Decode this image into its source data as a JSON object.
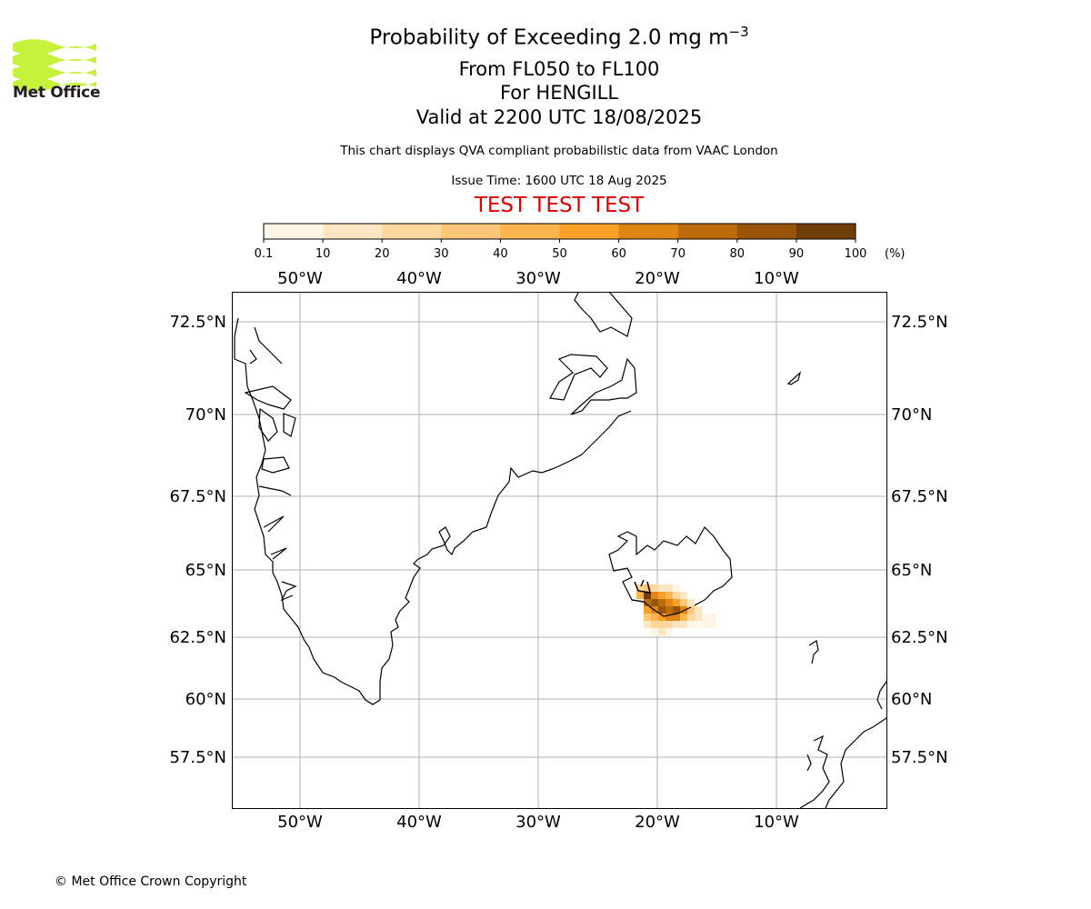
{
  "header": {
    "title_prefix": "Probability of Exceeding 2.0 mg m",
    "title_superscript": "−3",
    "levels": "From FL050 to FL100",
    "location": "For HENGILL",
    "valid": "Valid at 2200 UTC 18/08/2025",
    "description": "This chart displays QVA compliant probabilistic data from VAAC London",
    "issue_time": "Issue Time: 1600 UTC 18 Aug 2025",
    "test_banner": "TEST TEST TEST"
  },
  "logo": {
    "name": "Met Office",
    "color": "#c6f23b"
  },
  "colorbar": {
    "ticks": [
      "0.1",
      "10",
      "20",
      "30",
      "40",
      "50",
      "60",
      "70",
      "80",
      "90",
      "100"
    ],
    "unit": "(%)",
    "colors": [
      "#fff7e6",
      "#fee6c2",
      "#fed79c",
      "#fec776",
      "#feb54e",
      "#fba026",
      "#df8512",
      "#bd6c0b",
      "#985508",
      "#6e3e08"
    ]
  },
  "map": {
    "lon_labels": [
      "50°W",
      "40°W",
      "30°W",
      "20°W",
      "10°W"
    ],
    "lat_labels": [
      "72.5°N",
      "70°N",
      "67.5°N",
      "65°N",
      "62.5°N",
      "60°N",
      "57.5°N"
    ]
  },
  "footer": {
    "copyright": "© Met Office Crown Copyright"
  }
}
